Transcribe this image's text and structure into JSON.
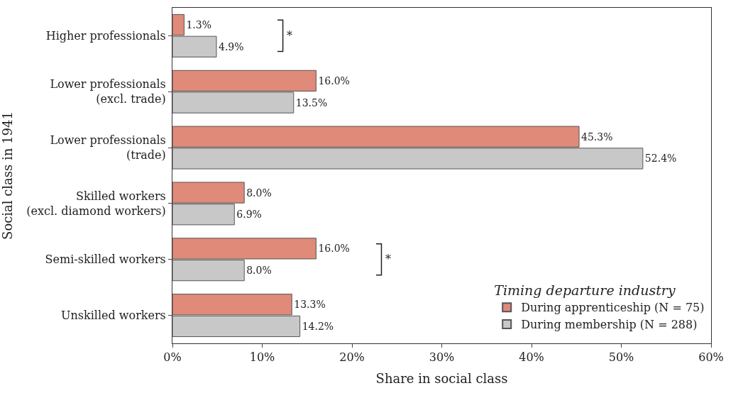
{
  "chart_data": {
    "type": "bar",
    "orientation": "horizontal",
    "xlabel": "Share in social class",
    "ylabel": "Social class in 1941",
    "categories": [
      "Higher professionals",
      "Lower professionals\n(excl. trade)",
      "Lower professionals\n(trade)",
      "Skilled workers\n(excl. diamond workers)",
      "Semi-skilled workers",
      "Unskilled workers"
    ],
    "series": [
      {
        "name": "During apprenticeship (N = 75)",
        "color": "#e08a7a",
        "values": [
          1.3,
          16.0,
          45.3,
          8.0,
          16.0,
          13.3
        ],
        "value_labels": [
          "1.3%",
          "16.0%",
          "45.3%",
          "8.0%",
          "16.0%",
          "13.3%"
        ]
      },
      {
        "name": "During membership (N = 288)",
        "color": "#c8c8c8",
        "values": [
          4.9,
          13.5,
          52.4,
          6.9,
          8.0,
          14.2
        ],
        "value_labels": [
          "4.9%",
          "13.5%",
          "52.4%",
          "6.9%",
          "8.0%",
          "14.2%"
        ]
      }
    ],
    "legend_title": "Timing departure industry",
    "legend": "bottom right",
    "xlim": [
      0,
      60
    ],
    "xticks": [
      {
        "value": 0,
        "label": "0%"
      },
      {
        "value": 10,
        "label": "10%"
      },
      {
        "value": 20,
        "label": "20%"
      },
      {
        "value": 30,
        "label": "30%"
      },
      {
        "value": 40,
        "label": "40%"
      },
      {
        "value": 50,
        "label": "50%"
      },
      {
        "value": 60,
        "label": "60%"
      }
    ],
    "annotations": [
      "*",
      "*"
    ]
  }
}
